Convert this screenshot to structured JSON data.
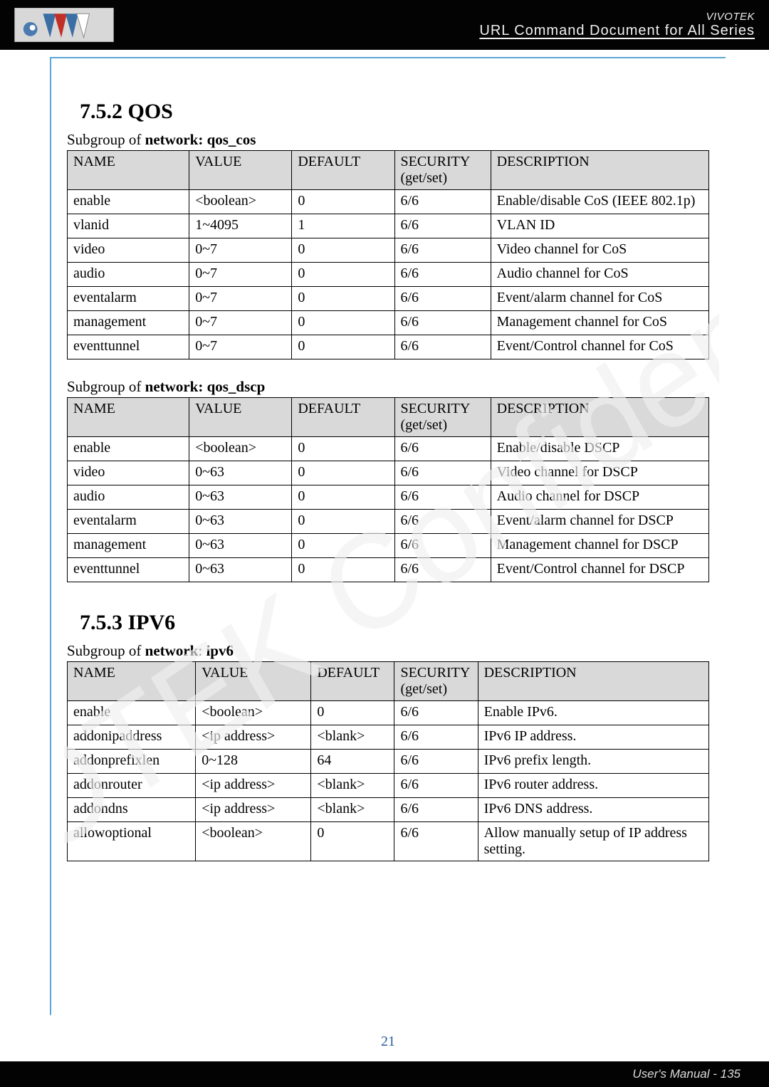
{
  "header": {
    "brand": "VIVOTEK",
    "subtitle": "URL Command Document for All Series"
  },
  "section_qos": {
    "heading": "7.5.2 QOS",
    "sub1_prefix": "Subgroup of ",
    "sub1_bold": "network: qos_cos",
    "table1": {
      "headers": [
        "NAME",
        "VALUE",
        "DEFAULT",
        "SECURITY (get/set)",
        "DESCRIPTION"
      ],
      "rows": [
        [
          "enable",
          "<boolean>",
          "0",
          "6/6",
          "Enable/disable CoS (IEEE 802.1p)"
        ],
        [
          "vlanid",
          "1~4095",
          "1",
          "6/6",
          "VLAN ID"
        ],
        [
          "video",
          "0~7",
          "0",
          "6/6",
          "Video channel for CoS"
        ],
        [
          "audio",
          "0~7",
          "0",
          "6/6",
          "Audio channel for CoS"
        ],
        [
          "eventalarm",
          "0~7",
          "0",
          "6/6",
          "Event/alarm channel for CoS"
        ],
        [
          "management",
          "0~7",
          "0",
          "6/6",
          "Management channel for CoS"
        ],
        [
          "eventtunnel",
          "0~7",
          "0",
          "6/6",
          "Event/Control channel for CoS"
        ]
      ]
    },
    "sub2_prefix": "Subgroup of ",
    "sub2_bold": "network: qos_dscp",
    "table2": {
      "headers": [
        "NAME",
        "VALUE",
        "DEFAULT",
        "SECURITY (get/set)",
        "DESCRIPTION"
      ],
      "rows": [
        [
          "enable",
          "<boolean>",
          "0",
          "6/6",
          "Enable/disable DSCP"
        ],
        [
          "video",
          "0~63",
          "0",
          "6/6",
          "Video channel for DSCP"
        ],
        [
          "audio",
          "0~63",
          "0",
          "6/6",
          "Audio channel for DSCP"
        ],
        [
          "eventalarm",
          "0~63",
          "0",
          "6/6",
          "Event/alarm channel for DSCP"
        ],
        [
          "management",
          "0~63",
          "0",
          "6/6",
          "Management channel for DSCP"
        ],
        [
          "eventtunnel",
          "0~63",
          "0",
          "6/6",
          "Event/Control channel for DSCP"
        ]
      ]
    }
  },
  "section_ipv6": {
    "heading": "7.5.3 IPV6",
    "sub_prefix": "Subgroup of ",
    "sub_bold": "network",
    "sub_suffix": ": ",
    "sub_bold2": "ipv6",
    "table": {
      "headers": [
        "NAME",
        "VALUE",
        "DEFAULT",
        "SECURITY (get/set)",
        "DESCRIPTION"
      ],
      "rows": [
        [
          "enable",
          "<boolean>",
          "0",
          "6/6",
          "Enable IPv6."
        ],
        [
          "addonipaddress",
          "<ip address>",
          "<blank>",
          "6/6",
          "IPv6 IP address."
        ],
        [
          "addonprefixlen",
          "0~128",
          "64",
          "6/6",
          "IPv6 prefix length."
        ],
        [
          "addonrouter",
          "<ip address>",
          "<blank>",
          "6/6",
          "IPv6 router address."
        ],
        [
          "addondns",
          "<ip address>",
          "<blank>",
          "6/6",
          "IPv6 DNS address."
        ],
        [
          "allowoptional",
          "<boolean>",
          "0",
          "6/6",
          "Allow manually setup of IP address setting."
        ]
      ]
    }
  },
  "page_number": "21",
  "footer": "User's Manual - 135",
  "colors": {
    "header_bg": "#030303",
    "frame_border": "#5aa6d8",
    "th_bg": "#d9d9d9",
    "page_num": "#2a5c9a",
    "watermark": "#e8e8e8"
  }
}
